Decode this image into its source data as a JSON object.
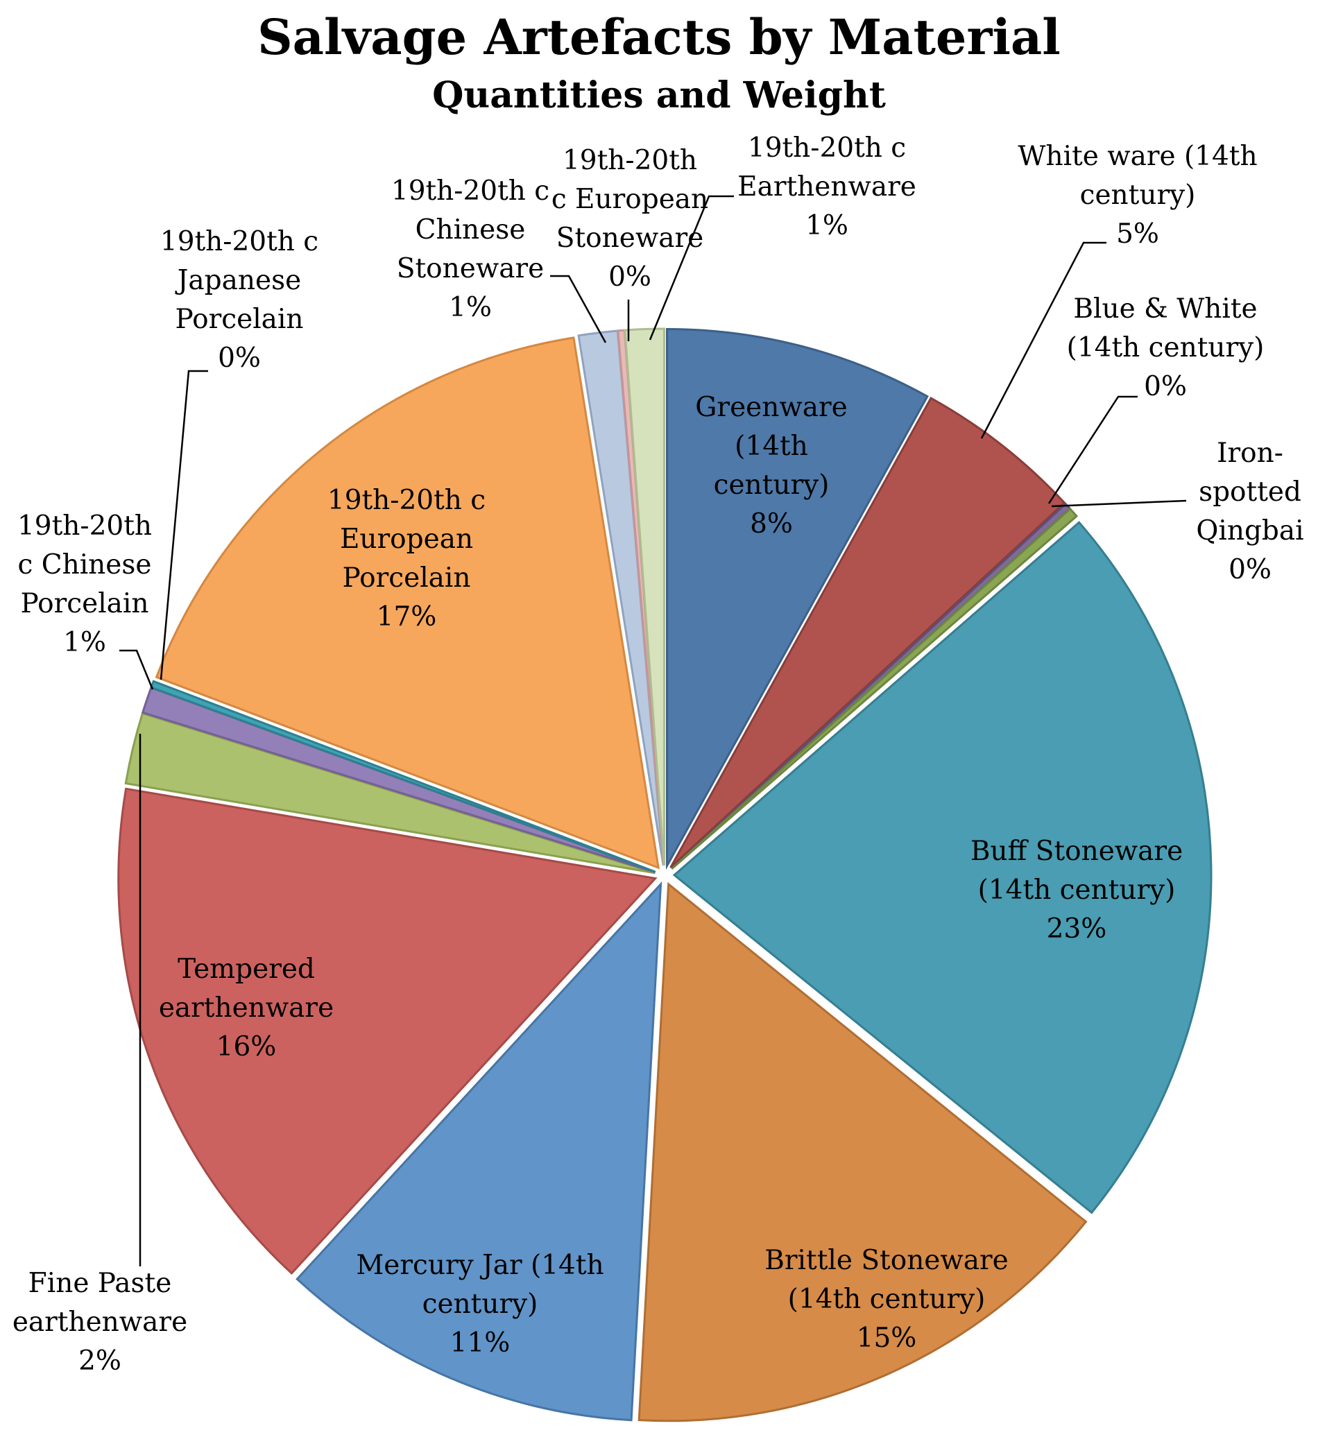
{
  "chart_data": {
    "type": "pie",
    "title": "Salvage Artefacts by Material",
    "subtitle": "Quantities and Weight",
    "start_angle_deg": 0,
    "direction": "clockwise",
    "exploded": true,
    "slices": [
      {
        "label": "Greenware (14th century)",
        "lines": [
          "Greenware",
          "(14th",
          "century)"
        ],
        "pct_label": "8%",
        "value": 8.3,
        "color": "#4e79a9",
        "stroke": "#3c6089"
      },
      {
        "label": "White ware (14th century)",
        "lines": [
          "White ware (14th",
          "century)"
        ],
        "pct_label": "5%",
        "value": 5.2,
        "color": "#b0534f",
        "stroke": "#8a3d3a"
      },
      {
        "label": "Blue & White (14th century)",
        "lines": [
          "Blue & White",
          "(14th century)"
        ],
        "pct_label": "0%",
        "value": 0.2,
        "color": "#7f6a9a",
        "stroke": "#5f4e75"
      },
      {
        "label": "Iron-spotted Qingbai",
        "lines": [
          "Iron-",
          "spotted",
          "Qingbai"
        ],
        "pct_label": "0%",
        "value": 0.3,
        "color": "#8aa653",
        "stroke": "#6d8640"
      },
      {
        "label": "Buff Stoneware (14th century)",
        "lines": [
          "Buff Stoneware",
          "(14th century)"
        ],
        "pct_label": "23%",
        "value": 22.9,
        "color": "#4a9db2",
        "stroke": "#367e90"
      },
      {
        "label": "Brittle Stoneware (14th century)",
        "lines": [
          "Brittle Stoneware",
          "(14th century)"
        ],
        "pct_label": "15%",
        "value": 15.5,
        "color": "#d68b48",
        "stroke": "#b06e33"
      },
      {
        "label": "Mercury Jar (14th century)",
        "lines": [
          "Mercury Jar (14th",
          "century)"
        ],
        "pct_label": "11%",
        "value": 11.3,
        "color": "#6194c8",
        "stroke": "#4775a5"
      },
      {
        "label": "Tempered earthenware",
        "lines": [
          "Tempered",
          "earthenware"
        ],
        "pct_label": "16%",
        "value": 16.3,
        "color": "#cb625f",
        "stroke": "#a54b48"
      },
      {
        "label": "Fine Paste earthenware",
        "lines": [
          "Fine Paste",
          "earthenware"
        ],
        "pct_label": "2%",
        "value": 2.2,
        "color": "#acc16d",
        "stroke": "#8aa050"
      },
      {
        "label": "19th-20th c Chinese Porcelain",
        "lines": [
          "19th-20th",
          "c Chinese",
          "Porcelain"
        ],
        "pct_label": "1%",
        "value": 0.8,
        "color": "#9480b8",
        "stroke": "#746096"
      },
      {
        "label": "19th-20th c Japanese Porcelain",
        "lines": [
          "19th-20th c",
          "Japanese",
          "Porcelain"
        ],
        "pct_label": "0%",
        "value": 0.2,
        "color": "#3fa3b4",
        "stroke": "#2d8090"
      },
      {
        "label": "19th-20th c European Porcelain",
        "lines": [
          "19th-20th c",
          "European",
          "Porcelain"
        ],
        "pct_label": "17%",
        "value": 17.2,
        "color": "#f6a75c",
        "stroke": "#d48840"
      },
      {
        "label": "19th-20th c Chinese Stoneware",
        "lines": [
          "19th-20th c",
          "Chinese",
          "Stoneware"
        ],
        "pct_label": "1%",
        "value": 1.2,
        "color": "#b9c9df",
        "stroke": "#8fa3c0"
      },
      {
        "label": "19th-20th c European Stoneware",
        "lines": [
          "19th-20th",
          "c European",
          "Stoneware"
        ],
        "pct_label": "0%",
        "value": 0.2,
        "color": "#e7b9b8",
        "stroke": "#c79594"
      },
      {
        "label": "19th-20th c Earthenware",
        "lines": [
          "19th-20th c",
          "Earthenware"
        ],
        "pct_label": "1%",
        "value": 1.2,
        "color": "#d6e2bc",
        "stroke": "#aebd8e"
      }
    ]
  }
}
